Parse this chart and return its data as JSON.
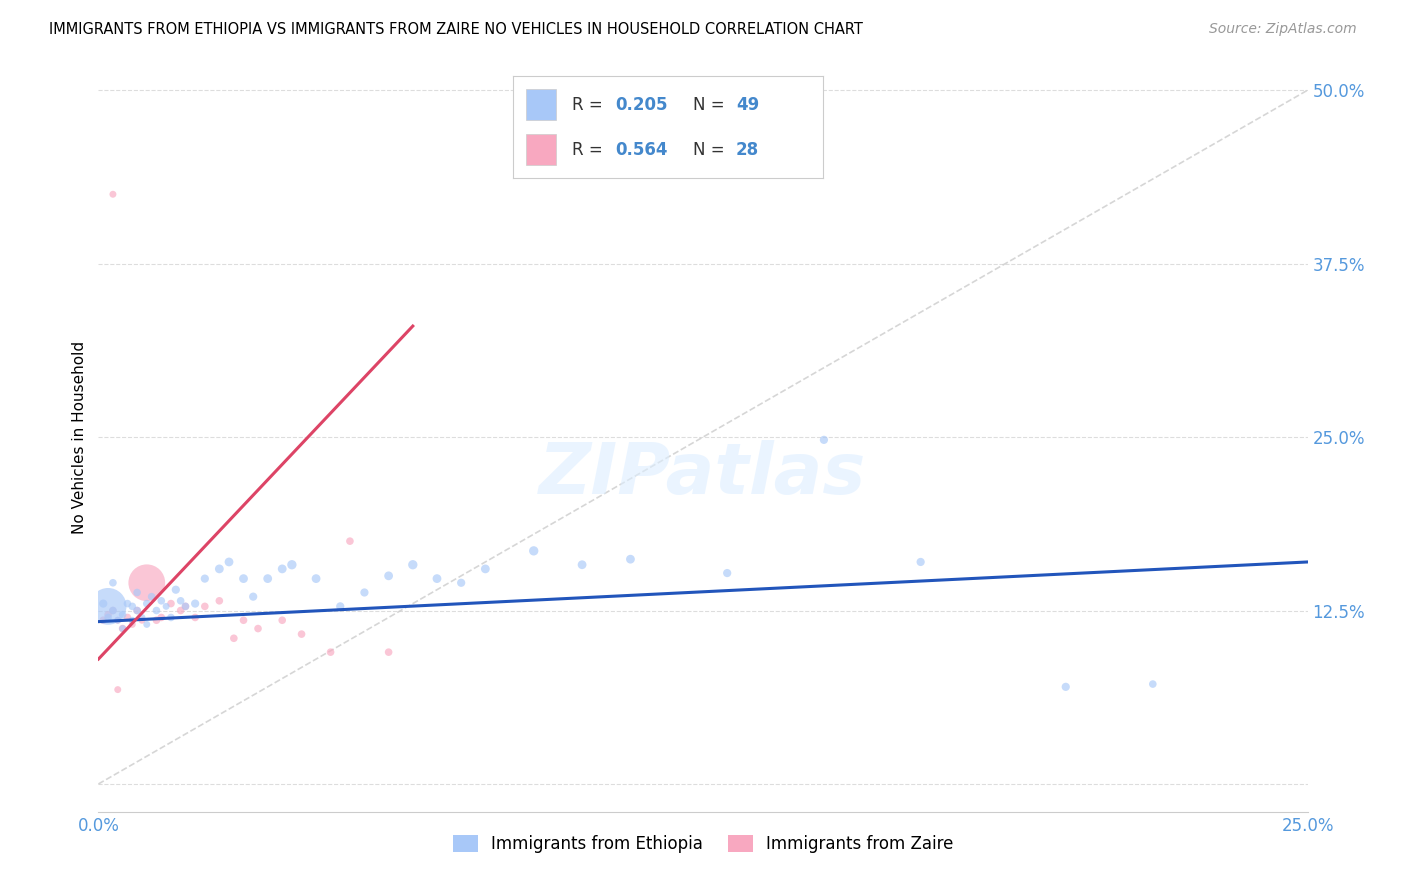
{
  "title": "IMMIGRANTS FROM ETHIOPIA VS IMMIGRANTS FROM ZAIRE NO VEHICLES IN HOUSEHOLD CORRELATION CHART",
  "source": "Source: ZipAtlas.com",
  "ylabel_label": "No Vehicles in Household",
  "legend_label1": "Immigrants from Ethiopia",
  "legend_label2": "Immigrants from Zaire",
  "R1": 0.205,
  "N1": 49,
  "R2": 0.564,
  "N2": 28,
  "color_ethiopia": "#a8c8f8",
  "color_zaire": "#f8a8c0",
  "line_color_ethiopia": "#2255bb",
  "line_color_zaire": "#dd4466",
  "diagonal_color": "#cccccc",
  "xlim": [
    0.0,
    0.25
  ],
  "ylim": [
    -0.02,
    0.52
  ],
  "xtick_positions": [
    0.0,
    0.05,
    0.1,
    0.15,
    0.2,
    0.25
  ],
  "xtick_labels": [
    "0.0%",
    "",
    "",
    "",
    "",
    "25.0%"
  ],
  "ytick_positions": [
    0.0,
    0.125,
    0.25,
    0.375,
    0.5
  ],
  "ytick_labels": [
    "",
    "12.5%",
    "25.0%",
    "37.5%",
    "50.0%"
  ],
  "eth_line_x0": 0.0,
  "eth_line_x1": 0.25,
  "eth_line_y0": 0.117,
  "eth_line_y1": 0.16,
  "zaire_line_x0": 0.0,
  "zaire_line_x1": 0.065,
  "zaire_line_y0": 0.09,
  "zaire_line_y1": 0.33,
  "eth_x": [
    0.001,
    0.002,
    0.003,
    0.003,
    0.004,
    0.005,
    0.005,
    0.006,
    0.007,
    0.007,
    0.008,
    0.008,
    0.009,
    0.01,
    0.01,
    0.011,
    0.012,
    0.013,
    0.014,
    0.015,
    0.016,
    0.017,
    0.018,
    0.02,
    0.022,
    0.025,
    0.027,
    0.03,
    0.032,
    0.035,
    0.038,
    0.04,
    0.045,
    0.05,
    0.055,
    0.06,
    0.065,
    0.07,
    0.075,
    0.08,
    0.09,
    0.1,
    0.11,
    0.13,
    0.15,
    0.17,
    0.2,
    0.218,
    0.002
  ],
  "eth_y": [
    0.13,
    0.12,
    0.125,
    0.145,
    0.118,
    0.122,
    0.112,
    0.13,
    0.118,
    0.128,
    0.125,
    0.138,
    0.12,
    0.13,
    0.115,
    0.135,
    0.125,
    0.132,
    0.128,
    0.12,
    0.14,
    0.132,
    0.128,
    0.13,
    0.148,
    0.155,
    0.16,
    0.148,
    0.135,
    0.148,
    0.155,
    0.158,
    0.148,
    0.128,
    0.138,
    0.15,
    0.158,
    0.148,
    0.145,
    0.155,
    0.168,
    0.158,
    0.162,
    0.152,
    0.248,
    0.16,
    0.07,
    0.072,
    0.128
  ],
  "eth_sizes": [
    35,
    30,
    30,
    30,
    25,
    30,
    25,
    30,
    25,
    30,
    30,
    30,
    25,
    30,
    25,
    30,
    30,
    30,
    25,
    30,
    35,
    30,
    30,
    35,
    35,
    40,
    40,
    40,
    35,
    40,
    40,
    45,
    40,
    35,
    35,
    40,
    45,
    40,
    35,
    40,
    45,
    40,
    40,
    35,
    35,
    35,
    35,
    30,
    700
  ],
  "zaire_x": [
    0.001,
    0.002,
    0.003,
    0.004,
    0.005,
    0.006,
    0.007,
    0.008,
    0.009,
    0.01,
    0.012,
    0.013,
    0.015,
    0.017,
    0.018,
    0.02,
    0.022,
    0.025,
    0.028,
    0.03,
    0.033,
    0.038,
    0.042,
    0.048,
    0.052,
    0.06,
    0.004,
    0.003
  ],
  "zaire_y": [
    0.118,
    0.122,
    0.125,
    0.118,
    0.112,
    0.12,
    0.115,
    0.125,
    0.118,
    0.145,
    0.118,
    0.12,
    0.13,
    0.125,
    0.128,
    0.12,
    0.128,
    0.132,
    0.105,
    0.118,
    0.112,
    0.118,
    0.108,
    0.095,
    0.175,
    0.095,
    0.068,
    0.425
  ],
  "zaire_sizes": [
    30,
    30,
    30,
    25,
    30,
    30,
    25,
    30,
    25,
    700,
    30,
    30,
    30,
    30,
    30,
    30,
    30,
    30,
    30,
    30,
    30,
    30,
    30,
    30,
    30,
    30,
    25,
    25
  ]
}
